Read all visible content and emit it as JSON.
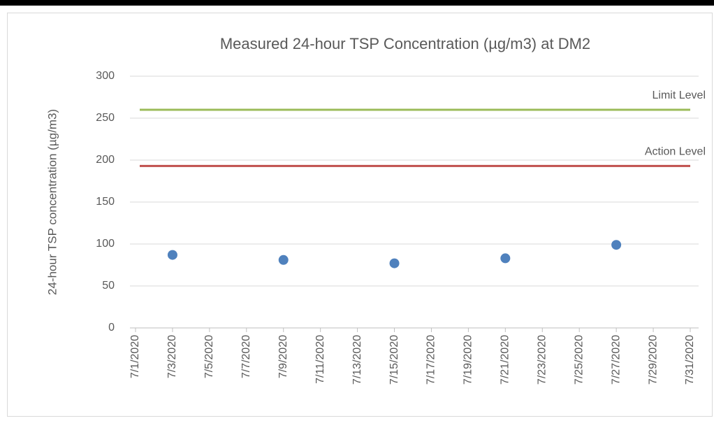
{
  "chart_data": {
    "type": "scatter",
    "title": "Measured 24-hour TSP Concentration (µg/m3) at DM2",
    "y_label": "24-hour TSP concentration (µg/m3)",
    "xlim": [
      "7/1/2020",
      "7/31/2020"
    ],
    "xticks": [
      "7/1/2020",
      "7/3/2020",
      "7/5/2020",
      "7/7/2020",
      "7/9/2020",
      "7/11/2020",
      "7/13/2020",
      "7/15/2020",
      "7/17/2020",
      "7/19/2020",
      "7/21/2020",
      "7/23/2020",
      "7/25/2020",
      "7/27/2020",
      "7/29/2020",
      "7/31/2020"
    ],
    "ylim": [
      0,
      300
    ],
    "yticks": [
      0,
      50,
      100,
      150,
      200,
      250,
      300
    ],
    "grid": true,
    "series": [
      {
        "color": "#4f81bd",
        "x": [
          "7/3/2020",
          "7/9/2020",
          "7/15/2020",
          "7/21/2020",
          "7/27/2020"
        ],
        "values": [
          87,
          81,
          77,
          83,
          99
        ]
      }
    ],
    "reference_lines": [
      {
        "name": "Limit Level",
        "value": 260,
        "color": "#9bbb59"
      },
      {
        "name": "Action Level",
        "value": 193,
        "color": "#c0504d"
      }
    ]
  }
}
